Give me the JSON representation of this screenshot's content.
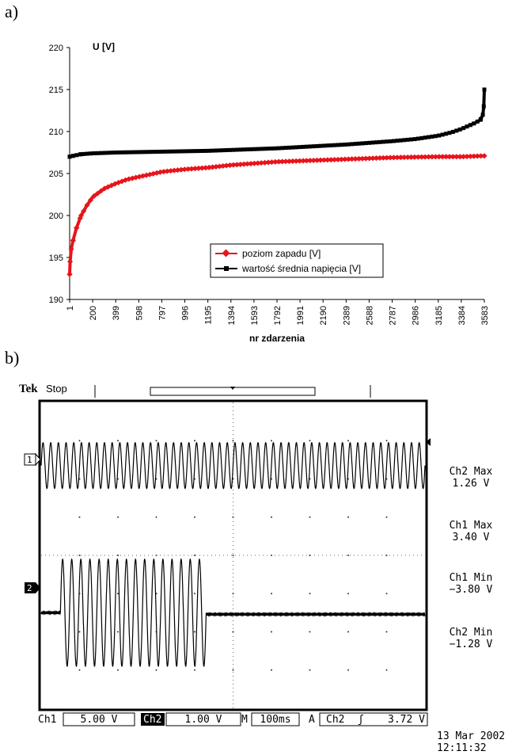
{
  "labels": {
    "a": "a)",
    "b": "b)"
  },
  "chart_data": [
    {
      "type": "line",
      "ylabel": "U [V]",
      "xlabel": "nr zdarzenia",
      "ylim": [
        190,
        220
      ],
      "yticks": [
        190,
        195,
        200,
        205,
        210,
        215,
        220
      ],
      "xlim": [
        1,
        3583
      ],
      "xticks": [
        1,
        200,
        399,
        598,
        797,
        996,
        1195,
        1394,
        1593,
        1792,
        1991,
        2190,
        2389,
        2588,
        2787,
        2986,
        3185,
        3384,
        3583
      ],
      "grid": false,
      "legend_position": "lower-center",
      "series": [
        {
          "name": "poziom zapadu [V]",
          "color": "#e8141b",
          "marker": "diamond",
          "points": [
            [
              1,
              193
            ],
            [
              5,
              194.5
            ],
            [
              15,
              196
            ],
            [
              30,
              197
            ],
            [
              60,
              198.5
            ],
            [
              100,
              200
            ],
            [
              150,
              201.2
            ],
            [
              200,
              202.2
            ],
            [
              300,
              203.2
            ],
            [
              399,
              203.8
            ],
            [
              500,
              204.3
            ],
            [
              598,
              204.6
            ],
            [
              700,
              204.9
            ],
            [
              797,
              205.2
            ],
            [
              996,
              205.5
            ],
            [
              1195,
              205.7
            ],
            [
              1394,
              206
            ],
            [
              1593,
              206.2
            ],
            [
              1792,
              206.4
            ],
            [
              1991,
              206.5
            ],
            [
              2190,
              206.6
            ],
            [
              2389,
              206.7
            ],
            [
              2588,
              206.8
            ],
            [
              2787,
              206.9
            ],
            [
              2986,
              206.95
            ],
            [
              3185,
              207
            ],
            [
              3384,
              207
            ],
            [
              3583,
              207.1
            ]
          ]
        },
        {
          "name": "wartość średnia napięcia [V]",
          "color": "#000000",
          "marker": "square",
          "points": [
            [
              1,
              207
            ],
            [
              30,
              207.1
            ],
            [
              100,
              207.3
            ],
            [
              200,
              207.4
            ],
            [
              399,
              207.5
            ],
            [
              598,
              207.55
            ],
            [
              797,
              207.6
            ],
            [
              996,
              207.65
            ],
            [
              1195,
              207.7
            ],
            [
              1394,
              207.8
            ],
            [
              1593,
              207.9
            ],
            [
              1792,
              208
            ],
            [
              1991,
              208.15
            ],
            [
              2190,
              208.3
            ],
            [
              2389,
              208.45
            ],
            [
              2588,
              208.65
            ],
            [
              2787,
              208.85
            ],
            [
              2986,
              209.1
            ],
            [
              3185,
              209.5
            ],
            [
              3300,
              209.9
            ],
            [
              3384,
              210.3
            ],
            [
              3450,
              210.7
            ],
            [
              3500,
              211
            ],
            [
              3550,
              211.4
            ],
            [
              3570,
              212
            ],
            [
              3578,
              213
            ],
            [
              3583,
              215
            ]
          ]
        }
      ]
    },
    {
      "type": "line",
      "instrument": "Tek",
      "status": "Stop",
      "channel_markers": [
        "1",
        "2"
      ],
      "ch1_wave": {
        "cycles": 50,
        "start": 0.0,
        "end": 1.0,
        "amplitude_divs": 0.6
      },
      "ch2_wave": {
        "cycles": 16,
        "start": 0.05,
        "end": 0.43,
        "amplitude_divs": 1.4
      },
      "measurements": [
        {
          "label": "Ch2 Max",
          "value": "1.26 V"
        },
        {
          "label": "Ch1 Max",
          "value": "3.40 V"
        },
        {
          "label": "Ch1 Min",
          "value": "−3.80 V"
        },
        {
          "label": "Ch2 Min",
          "value": "−1.28 V"
        }
      ],
      "status_bar": {
        "ch1_label": "Ch1",
        "ch1_scale": "5.00 V",
        "ch2_label": "Ch2",
        "ch2_scale": "1.00 V",
        "time_label": "M",
        "time_scale": "100ms",
        "trig_label": "A",
        "trig_source": "Ch2",
        "trig_symbol": "ʃ",
        "trig_level": "3.72 V"
      },
      "date": "13 Mar  2002",
      "time": "12:11:32"
    }
  ]
}
